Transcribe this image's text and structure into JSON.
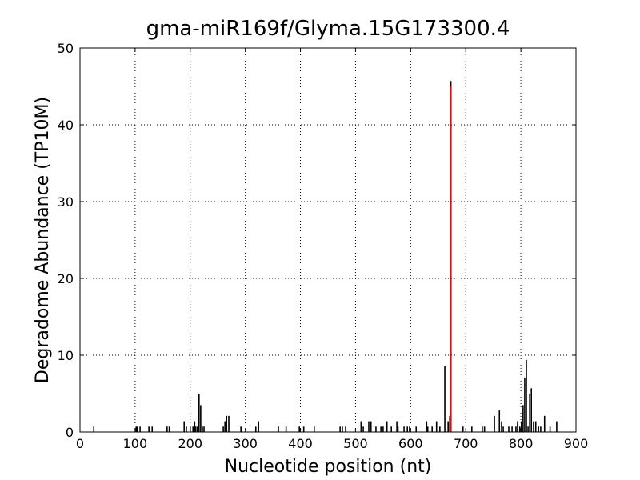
{
  "chart_data": {
    "type": "bar",
    "title": "gma-miR169f/Glyma.15G173300.4",
    "x_label": "Nucleotide position (nt)",
    "y_label": "Degradome Abundance (TP10M)",
    "xlim": [
      0,
      900
    ],
    "xticks": [
      0,
      100,
      200,
      300,
      400,
      500,
      600,
      700,
      800,
      900
    ],
    "ylim": [
      0,
      50
    ],
    "yticks": [
      0,
      10,
      20,
      30,
      40,
      50
    ],
    "grid": true,
    "series": [
      {
        "color": "#000000",
        "x": [
          25,
          102,
          104,
          109,
          125,
          131,
          158,
          162,
          189,
          193,
          200,
          205,
          208,
          210,
          213,
          216,
          219,
          222,
          225,
          260,
          263,
          266,
          270,
          292,
          319,
          324,
          360,
          374,
          398,
          406,
          425,
          472,
          476,
          482,
          510,
          514,
          524,
          528,
          537,
          546,
          550,
          557,
          565,
          575,
          577,
          588,
          594,
          598,
          610,
          629,
          631,
          639,
          647,
          653,
          662,
          668,
          671,
          673,
          695,
          711,
          730,
          734,
          752,
          761,
          765,
          768,
          778,
          784,
          791,
          794,
          798,
          801,
          804,
          807,
          810,
          813,
          816,
          819,
          823,
          827,
          832,
          836,
          843,
          853,
          865
        ],
        "values": [
          0.7,
          0.7,
          0.7,
          0.7,
          0.7,
          0.7,
          0.7,
          0.7,
          1.4,
          0.7,
          0.7,
          0.7,
          1.4,
          0.7,
          0.7,
          5.0,
          3.5,
          0.7,
          0.7,
          0.7,
          1.4,
          2.1,
          2.1,
          0.7,
          0.7,
          1.4,
          0.7,
          0.7,
          0.7,
          0.7,
          0.7,
          0.7,
          0.7,
          0.7,
          1.4,
          0.7,
          1.4,
          1.4,
          0.7,
          0.7,
          0.7,
          1.4,
          0.7,
          1.4,
          0.7,
          0.7,
          0.7,
          0.7,
          0.7,
          1.4,
          0.7,
          0.7,
          1.4,
          0.7,
          8.6,
          1.4,
          2.1,
          45.7,
          0.7,
          0.7,
          0.7,
          0.7,
          2.1,
          2.8,
          1.4,
          0.7,
          0.7,
          0.7,
          0.7,
          1.4,
          0.7,
          1.4,
          3.5,
          7.1,
          9.4,
          0.7,
          5.0,
          5.7,
          1.4,
          1.4,
          0.7,
          0.7,
          2.1,
          0.7,
          1.4
        ]
      },
      {
        "color": "#ff0000",
        "x": [
          673
        ],
        "values": [
          45.0
        ]
      }
    ]
  }
}
